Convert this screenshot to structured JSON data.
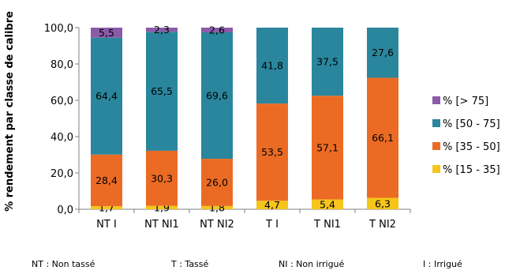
{
  "chart_data": {
    "type": "bar",
    "stacked": true,
    "categories": [
      "NT I",
      "NT NI1",
      "NT NI2",
      "T I",
      "T NI1",
      "T NI2"
    ],
    "series": [
      {
        "name": "% [15 - 35]",
        "color": "#F5C519",
        "values": [
          1.7,
          1.9,
          1.8,
          4.7,
          5.4,
          6.3
        ],
        "labels": [
          "1,7",
          "1,9",
          "1,8",
          "4,7",
          "5,4",
          "6,3"
        ]
      },
      {
        "name": "% [35 - 50]",
        "color": "#EB6B25",
        "values": [
          28.4,
          30.3,
          26.0,
          53.5,
          57.1,
          66.1
        ],
        "labels": [
          "28,4",
          "30,3",
          "26,0",
          "53,5",
          "57,1",
          "66,1"
        ]
      },
      {
        "name": "% [50 - 75]",
        "color": "#2A869C",
        "values": [
          64.4,
          65.5,
          69.6,
          41.8,
          37.5,
          27.6
        ],
        "labels": [
          "64,4",
          "65,5",
          "69,6",
          "41,8",
          "37,5",
          "27,6"
        ]
      },
      {
        "name": "% [> 75]",
        "color": "#8A5BA8",
        "values": [
          5.5,
          2.3,
          2.6,
          0,
          0,
          0
        ],
        "labels": [
          "5,5",
          "2,3",
          "2,6",
          "",
          "",
          ""
        ]
      }
    ],
    "ylabel": "% rendement par classe de calibre",
    "ylim": [
      0,
      100
    ],
    "yticks": [
      0,
      20,
      40,
      60,
      80,
      100
    ],
    "ytick_labels": [
      "0,0",
      "20,0",
      "40,0",
      "60,0",
      "80,0",
      "100,0"
    ],
    "legend_position": "right",
    "grid": false
  },
  "footnotes": [
    "NT : Non tassé",
    "T : Tassé",
    "NI : Non irrigué",
    "I : Irrigué"
  ]
}
